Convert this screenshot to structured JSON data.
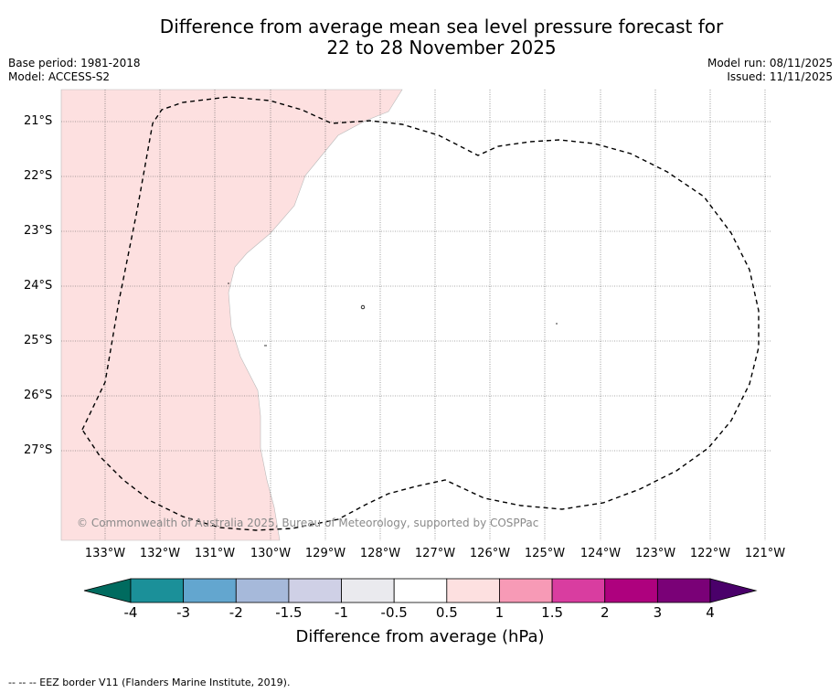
{
  "title_line1": "Difference from average mean sea level pressure forecast for",
  "title_line2": "22 to 28 November 2025",
  "base_period": "Base period: 1981-2018",
  "model": "Model: ACCESS-S2",
  "model_run": "Model run: 08/11/2025",
  "issued": "Issued: 11/11/2025",
  "lat_labels": [
    "21°S",
    "22°S",
    "23°S",
    "24°S",
    "25°S",
    "26°S",
    "27°S"
  ],
  "lon_labels": [
    "133°W",
    "132°W",
    "131°W",
    "130°W",
    "129°W",
    "128°W",
    "127°W",
    "126°W",
    "125°W",
    "124°W",
    "123°W",
    "122°W",
    "121°W"
  ],
  "copyright": "© Commonwealth of Australia 2025, Bureau of Meteorology, supported by COSPPac",
  "colorbar": {
    "ticks": [
      "-4",
      "-3",
      "-2",
      "-1.5",
      "-1",
      "-0.5",
      "0.5",
      "1",
      "1.5",
      "2",
      "3",
      "4"
    ],
    "label": "Difference from average (hPa)",
    "colors": [
      "#006b5f",
      "#1b9099",
      "#63a6cf",
      "#a6b9da",
      "#cfd0e6",
      "#eaeaee",
      "#ffffff",
      "#fde0e0",
      "#f79ab6",
      "#d93da0",
      "#ae017e",
      "#7a0177",
      "#4a006a"
    ]
  },
  "anomaly_fill_color": "#fde0e0",
  "footer": "-- -- -- EEZ border V11 (Flanders Marine Institute, 2019)."
}
